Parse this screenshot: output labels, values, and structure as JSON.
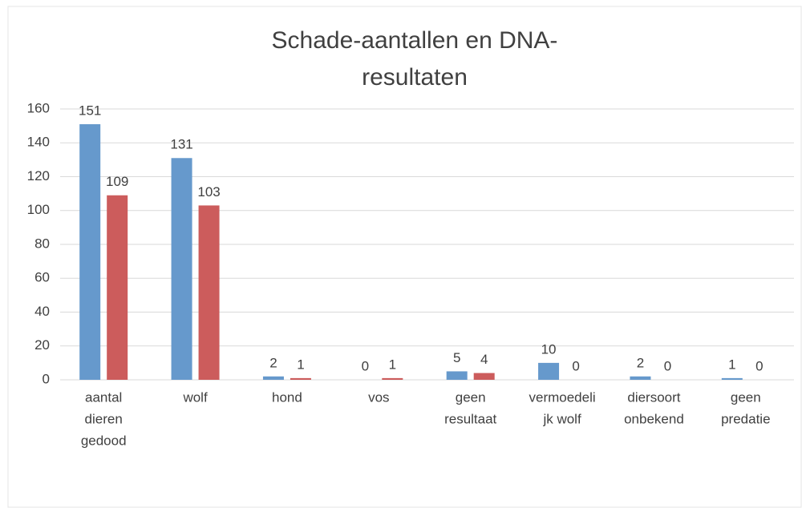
{
  "chart_data": {
    "type": "bar",
    "title": [
      "Schade-aantallen  en  DNA-",
      "resultaten"
    ],
    "categories": [
      [
        "aantal",
        "dieren",
        "gedood"
      ],
      [
        "wolf"
      ],
      [
        "hond"
      ],
      [
        "vos"
      ],
      [
        "geen",
        "resultaat"
      ],
      [
        "vermoedeli",
        "jk wolf"
      ],
      [
        "diersoort",
        "onbekend"
      ],
      [
        "geen",
        "predatie"
      ]
    ],
    "series": [
      {
        "color": "#6699cc",
        "values": [
          151,
          131,
          2,
          0,
          5,
          10,
          2,
          1
        ]
      },
      {
        "color": "#cc5c5c",
        "values": [
          109,
          103,
          1,
          1,
          4,
          0,
          0,
          0
        ]
      }
    ],
    "ylim": [
      0,
      160
    ],
    "yticks": [
      0,
      20,
      40,
      60,
      80,
      100,
      120,
      140,
      160
    ],
    "grid": true
  }
}
